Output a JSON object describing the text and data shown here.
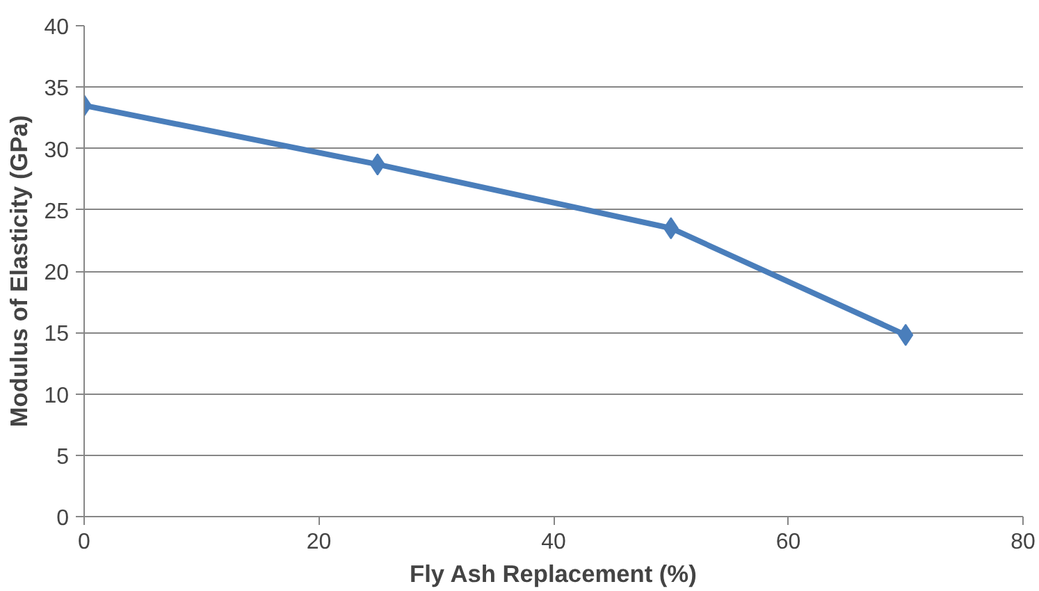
{
  "chart_data": {
    "type": "line",
    "xlabel": "Fly Ash Replacement (%)",
    "ylabel": "Modulus of Elasticity (GPa)",
    "x": [
      0,
      25,
      50,
      70
    ],
    "series": [
      {
        "color": "#4a7ebb",
        "values": [
          33.5,
          28.7,
          23.5,
          14.8
        ]
      }
    ],
    "xlim": [
      0,
      80
    ],
    "xticks": [
      0,
      20,
      40,
      60,
      80
    ],
    "ylim": [
      0,
      40
    ],
    "yticks": [
      0,
      5,
      10,
      15,
      20,
      25,
      30,
      35,
      40
    ],
    "grid": "y",
    "marker": "diamond",
    "line_style": "solid"
  }
}
